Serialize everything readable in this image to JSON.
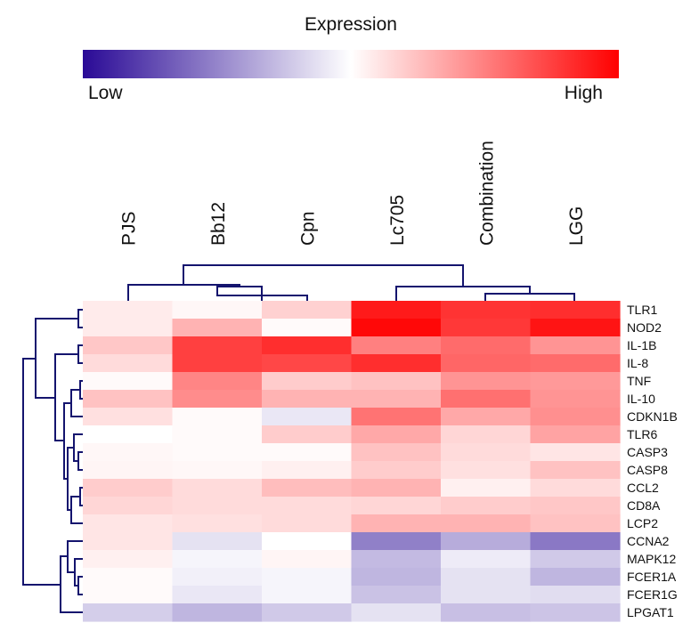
{
  "chart_data": {
    "type": "heatmap",
    "legend": {
      "title": "Expression",
      "low_label": "Low",
      "high_label": "High",
      "colors": [
        "#2a0a96",
        "#ffffff",
        "#ff0000"
      ]
    },
    "scale": [
      -1,
      1
    ],
    "columns": [
      "PJS",
      "Bb12",
      "Cpn",
      "Lc705",
      "Combination",
      "LGG"
    ],
    "rows": [
      "TLR1",
      "NOD2",
      "IL-1B",
      "IL-8",
      "TNF",
      "IL-10",
      "CDKN1B",
      "TLR6",
      "CASP3",
      "CASP8",
      "CCL2",
      "CD8A",
      "LCP2",
      "CCNA2",
      "MAPK12",
      "FCER1A",
      "FCER1G",
      "LPGAT1"
    ],
    "values": [
      [
        0.08,
        0.03,
        0.18,
        0.9,
        0.8,
        0.82
      ],
      [
        0.08,
        0.3,
        0.02,
        0.97,
        0.78,
        0.92
      ],
      [
        0.22,
        0.75,
        0.82,
        0.5,
        0.58,
        0.42
      ],
      [
        0.14,
        0.75,
        0.72,
        0.82,
        0.6,
        0.58
      ],
      [
        0.02,
        0.48,
        0.2,
        0.24,
        0.42,
        0.4
      ],
      [
        0.24,
        0.45,
        0.3,
        0.3,
        0.56,
        0.42
      ],
      [
        0.12,
        0.02,
        -0.1,
        0.55,
        0.34,
        0.44
      ],
      [
        0.0,
        0.02,
        0.2,
        0.34,
        0.16,
        0.36
      ],
      [
        0.03,
        0.02,
        0.02,
        0.24,
        0.14,
        0.1
      ],
      [
        0.04,
        0.03,
        0.06,
        0.2,
        0.12,
        0.24
      ],
      [
        0.2,
        0.14,
        0.26,
        0.3,
        0.06,
        0.14
      ],
      [
        0.16,
        0.14,
        0.14,
        0.16,
        0.2,
        0.22
      ],
      [
        0.1,
        0.12,
        0.14,
        0.3,
        0.3,
        0.24
      ],
      [
        0.1,
        -0.12,
        0.0,
        -0.52,
        -0.34,
        -0.55
      ],
      [
        0.06,
        -0.04,
        0.04,
        -0.28,
        -0.08,
        -0.22
      ],
      [
        0.02,
        -0.06,
        -0.04,
        -0.3,
        -0.12,
        -0.3
      ],
      [
        0.02,
        -0.1,
        -0.04,
        -0.25,
        -0.12,
        -0.14
      ],
      [
        -0.2,
        -0.3,
        -0.22,
        -0.12,
        -0.26,
        -0.24
      ]
    ]
  }
}
